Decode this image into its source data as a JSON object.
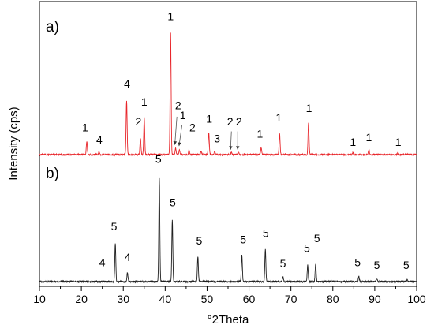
{
  "chart_data": {
    "type": "line",
    "xlabel": "°2Theta",
    "ylabel": "Intensity (cps)",
    "xlim": [
      10,
      100
    ],
    "x_ticks": [
      "10",
      "20",
      "30",
      "40",
      "50",
      "60",
      "70",
      "80",
      "90",
      "100"
    ],
    "grid": false,
    "panels": [
      {
        "label": "a)",
        "color": "#e8262b",
        "baseline": 0,
        "peaks": [
          {
            "x": 21.3,
            "y": 0.11
          },
          {
            "x": 24.2,
            "y": 0.02
          },
          {
            "x": 30.8,
            "y": 0.44
          },
          {
            "x": 34.1,
            "y": 0.13
          },
          {
            "x": 35.0,
            "y": 0.3
          },
          {
            "x": 41.3,
            "y": 1.0
          },
          {
            "x": 42.5,
            "y": 0.05
          },
          {
            "x": 43.4,
            "y": 0.035
          },
          {
            "x": 45.7,
            "y": 0.04
          },
          {
            "x": 48.6,
            "y": 0.03
          },
          {
            "x": 50.4,
            "y": 0.18
          },
          {
            "x": 51.8,
            "y": 0.03
          },
          {
            "x": 55.8,
            "y": 0.02
          },
          {
            "x": 57.5,
            "y": 0.02
          },
          {
            "x": 62.9,
            "y": 0.06
          },
          {
            "x": 67.3,
            "y": 0.17
          },
          {
            "x": 74.2,
            "y": 0.26
          },
          {
            "x": 84.8,
            "y": 0.015
          },
          {
            "x": 88.6,
            "y": 0.04
          },
          {
            "x": 95.5,
            "y": 0.015
          }
        ],
        "annotations": [
          {
            "text": "1",
            "x": 20.9,
            "y": 0.19
          },
          {
            "text": "4",
            "x": 24.3,
            "y": 0.09
          },
          {
            "text": "4",
            "x": 30.9,
            "y": 0.55
          },
          {
            "text": "2",
            "x": 33.6,
            "y": 0.24
          },
          {
            "text": "1",
            "x": 35.0,
            "y": 0.4
          },
          {
            "text": "1",
            "x": 41.3,
            "y": 1.1
          },
          {
            "text": "2",
            "x": 43.1,
            "y": 0.37
          },
          {
            "text": "1",
            "x": 44.2,
            "y": 0.29
          },
          {
            "text": "2",
            "x": 46.5,
            "y": 0.19
          },
          {
            "text": "1",
            "x": 50.5,
            "y": 0.26
          },
          {
            "text": "3",
            "x": 52.4,
            "y": 0.1
          },
          {
            "text": "2",
            "x": 55.5,
            "y": 0.24
          },
          {
            "text": "2",
            "x": 57.6,
            "y": 0.24
          },
          {
            "text": "1",
            "x": 62.6,
            "y": 0.14
          },
          {
            "text": "1",
            "x": 67.1,
            "y": 0.27
          },
          {
            "text": "1",
            "x": 74.3,
            "y": 0.35
          },
          {
            "text": "1",
            "x": 84.8,
            "y": 0.07
          },
          {
            "text": "1",
            "x": 88.6,
            "y": 0.11
          },
          {
            "text": "1",
            "x": 95.6,
            "y": 0.07
          }
        ]
      },
      {
        "label": "b)",
        "color": "#202020",
        "baseline": 0,
        "peaks": [
          {
            "x": 28.1,
            "y": 0.3
          },
          {
            "x": 31.0,
            "y": 0.07
          },
          {
            "x": 38.6,
            "y": 0.81
          },
          {
            "x": 41.7,
            "y": 0.48
          },
          {
            "x": 47.8,
            "y": 0.2
          },
          {
            "x": 58.3,
            "y": 0.21
          },
          {
            "x": 63.9,
            "y": 0.25
          },
          {
            "x": 68.1,
            "y": 0.04
          },
          {
            "x": 74.0,
            "y": 0.13
          },
          {
            "x": 75.9,
            "y": 0.14
          },
          {
            "x": 86.2,
            "y": 0.04
          },
          {
            "x": 90.5,
            "y": 0.02
          },
          {
            "x": 97.7,
            "y": 0.015
          }
        ],
        "annotations": [
          {
            "text": "4",
            "x": 25.0,
            "y": 0.12
          },
          {
            "text": "5",
            "x": 27.8,
            "y": 0.4
          },
          {
            "text": "4",
            "x": 31.0,
            "y": 0.16
          },
          {
            "text": "5",
            "x": 38.4,
            "y": 0.93
          },
          {
            "text": "5",
            "x": 41.8,
            "y": 0.59
          },
          {
            "text": "5",
            "x": 48.1,
            "y": 0.29
          },
          {
            "text": "5",
            "x": 58.6,
            "y": 0.3
          },
          {
            "text": "5",
            "x": 64.0,
            "y": 0.35
          },
          {
            "text": "5",
            "x": 68.1,
            "y": 0.11
          },
          {
            "text": "5",
            "x": 73.8,
            "y": 0.23
          },
          {
            "text": "5",
            "x": 76.2,
            "y": 0.31
          },
          {
            "text": "5",
            "x": 85.9,
            "y": 0.12
          },
          {
            "text": "5",
            "x": 90.5,
            "y": 0.1
          },
          {
            "text": "5",
            "x": 97.5,
            "y": 0.1
          }
        ]
      }
    ],
    "arrows": [
      {
        "panel": 0,
        "from": [
          42.8,
          0.31
        ],
        "to": [
          42.3,
          0.08
        ]
      },
      {
        "panel": 0,
        "from": [
          44.0,
          0.24
        ],
        "to": [
          43.3,
          0.07
        ]
      },
      {
        "panel": 0,
        "from": [
          55.8,
          0.19
        ],
        "to": [
          55.6,
          0.04
        ]
      },
      {
        "panel": 0,
        "from": [
          57.3,
          0.19
        ],
        "to": [
          57.3,
          0.04
        ]
      }
    ]
  }
}
